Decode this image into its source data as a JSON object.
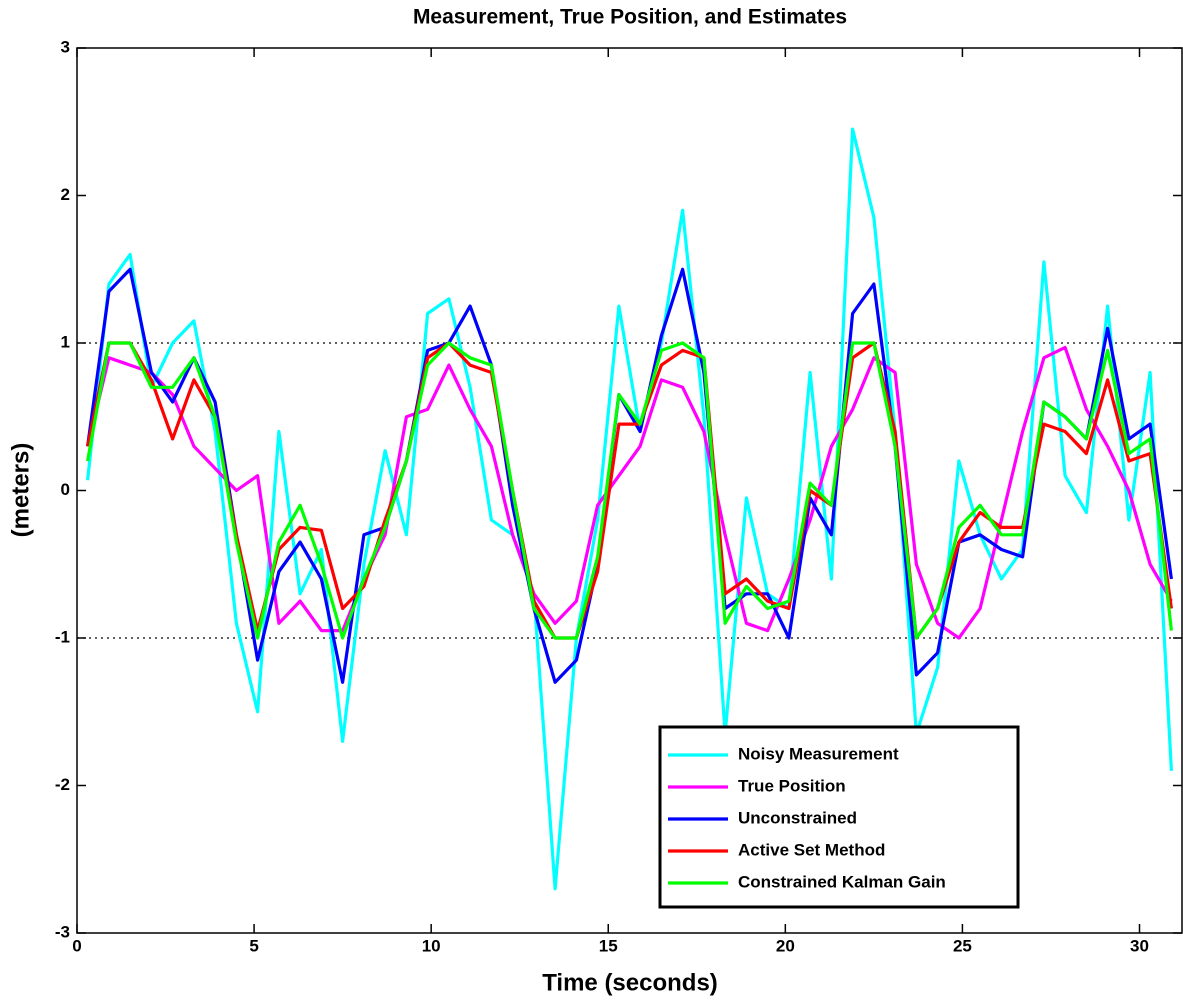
{
  "chart_data": {
    "type": "line",
    "title": "Measurement, True Position, and Estimates",
    "x_label": "Time (seconds)",
    "y_label": "(meters)",
    "x": [
      0.3,
      0.9,
      1.5,
      2.1,
      2.7,
      3.3,
      3.9,
      4.5,
      5.1,
      5.7,
      6.3,
      6.9,
      7.5,
      8.1,
      8.7,
      9.3,
      9.9,
      10.5,
      11.1,
      11.7,
      12.3,
      12.9,
      13.5,
      14.1,
      14.7,
      15.3,
      15.9,
      16.5,
      17.1,
      17.7,
      18.3,
      18.9,
      19.5,
      20.1,
      20.7,
      21.3,
      21.9,
      22.5,
      23.1,
      23.7,
      24.3,
      24.9,
      25.5,
      26.1,
      26.7,
      27.3,
      27.9,
      28.5,
      29.1,
      29.7,
      30.3,
      30.9
    ],
    "series": [
      {
        "name": "Noisy Measurement",
        "color": "#00ffff",
        "values": [
          0.07,
          1.4,
          1.6,
          0.7,
          1.0,
          1.15,
          0.4,
          -0.9,
          -1.5,
          0.4,
          -0.7,
          -0.4,
          -1.7,
          -0.5,
          0.27,
          -0.3,
          1.2,
          1.3,
          0.7,
          -0.2,
          -0.3,
          -0.7,
          -2.7,
          -1.0,
          -0.2,
          1.25,
          0.4,
          1.0,
          1.9,
          0.5,
          -1.65,
          -0.05,
          -0.7,
          -0.8,
          0.8,
          -0.6,
          2.45,
          1.85,
          0.4,
          -1.65,
          -1.2,
          0.2,
          -0.3,
          -0.6,
          -0.4,
          1.55,
          0.1,
          -0.15,
          1.25,
          -0.2,
          0.8,
          -1.9
        ]
      },
      {
        "name": "True Position",
        "color": "#ff00ff",
        "values": [
          0.3,
          0.9,
          0.85,
          0.8,
          0.65,
          0.3,
          0.15,
          0.0,
          0.1,
          -0.9,
          -0.75,
          -0.95,
          -0.95,
          -0.6,
          -0.3,
          0.5,
          0.55,
          0.85,
          0.55,
          0.3,
          -0.3,
          -0.7,
          -0.9,
          -0.75,
          -0.1,
          0.1,
          0.3,
          0.75,
          0.7,
          0.4,
          -0.3,
          -0.9,
          -0.95,
          -0.6,
          -0.2,
          0.3,
          0.55,
          0.9,
          0.8,
          -0.5,
          -0.9,
          -1.0,
          -0.8,
          -0.2,
          0.4,
          0.9,
          0.97,
          0.55,
          0.3,
          0.0,
          -0.5,
          -0.75
        ]
      },
      {
        "name": "Unconstrained",
        "color": "#0000ff",
        "values": [
          0.3,
          1.35,
          1.5,
          0.8,
          0.6,
          0.9,
          0.6,
          -0.3,
          -1.15,
          -0.55,
          -0.35,
          -0.6,
          -1.3,
          -0.3,
          -0.25,
          0.2,
          0.95,
          1.0,
          1.25,
          0.85,
          -0.1,
          -0.8,
          -1.3,
          -1.15,
          -0.5,
          0.65,
          0.4,
          1.05,
          1.5,
          0.8,
          -0.8,
          -0.7,
          -0.7,
          -1.0,
          -0.05,
          -0.3,
          1.2,
          1.4,
          0.3,
          -1.25,
          -1.1,
          -0.35,
          -0.3,
          -0.4,
          -0.45,
          0.6,
          0.5,
          0.35,
          1.1,
          0.35,
          0.45,
          -0.6
        ]
      },
      {
        "name": "Active Set Method",
        "color": "#ff0000",
        "values": [
          0.3,
          1.0,
          1.0,
          0.75,
          0.35,
          0.75,
          0.5,
          -0.3,
          -0.95,
          -0.4,
          -0.25,
          -0.27,
          -0.8,
          -0.65,
          -0.2,
          0.2,
          0.9,
          1.0,
          0.85,
          0.8,
          0.0,
          -0.75,
          -1.0,
          -1.0,
          -0.55,
          0.45,
          0.45,
          0.85,
          0.95,
          0.9,
          -0.7,
          -0.6,
          -0.75,
          -0.8,
          0.0,
          -0.1,
          0.9,
          1.0,
          0.4,
          -1.0,
          -0.8,
          -0.35,
          -0.15,
          -0.25,
          -0.25,
          0.45,
          0.4,
          0.25,
          0.75,
          0.2,
          0.25,
          -0.8
        ]
      },
      {
        "name": "Constrained Kalman Gain",
        "color": "#00ff00",
        "values": [
          0.2,
          1.0,
          1.0,
          0.7,
          0.7,
          0.9,
          0.5,
          -0.35,
          -1.0,
          -0.35,
          -0.1,
          -0.5,
          -1.0,
          -0.6,
          -0.25,
          0.2,
          0.85,
          1.0,
          0.9,
          0.85,
          0.0,
          -0.8,
          -1.0,
          -1.0,
          -0.45,
          0.65,
          0.45,
          0.95,
          1.0,
          0.9,
          -0.9,
          -0.65,
          -0.8,
          -0.75,
          0.05,
          -0.1,
          1.0,
          1.0,
          0.3,
          -1.0,
          -0.8,
          -0.25,
          -0.1,
          -0.3,
          -0.3,
          0.6,
          0.5,
          0.35,
          0.95,
          0.25,
          0.35,
          -0.95
        ]
      }
    ],
    "xlim": [
      0,
      31.2
    ],
    "ylim": [
      -3,
      3
    ],
    "xticks": [
      0,
      5,
      10,
      15,
      20,
      25,
      30
    ],
    "yticks": [
      -3,
      -2,
      -1,
      0,
      1,
      2,
      3
    ],
    "hlines": [
      -1,
      1
    ],
    "legend": "lower center"
  }
}
